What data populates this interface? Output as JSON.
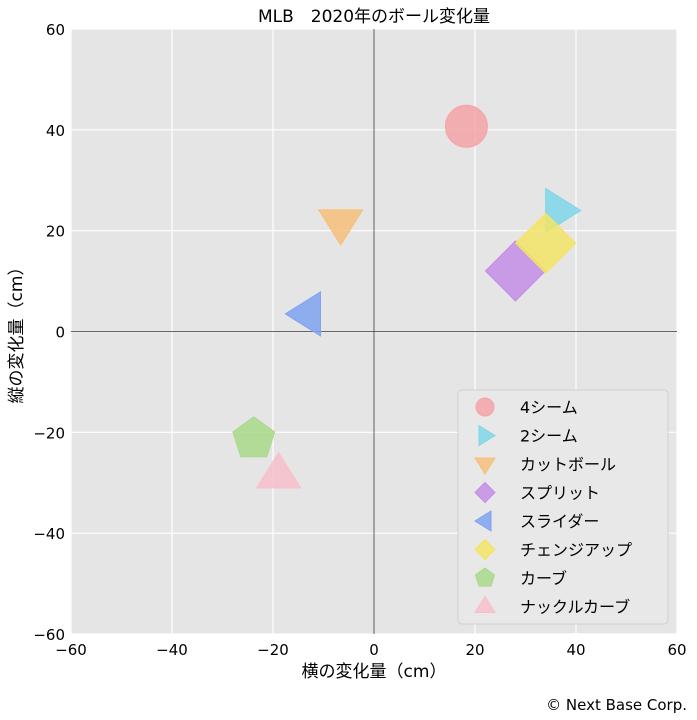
{
  "chart_data": {
    "type": "scatter",
    "title": "MLB　2020年のボール変化量",
    "xlabel": "横の変化量（cm）",
    "ylabel": "縦の変化量（cm）",
    "xlim": [
      -60,
      60
    ],
    "ylim": [
      -60,
      60
    ],
    "xticks": [
      "−60",
      "−40",
      "−20",
      "0",
      "20",
      "40",
      "60"
    ],
    "yticks": [
      "60",
      "40",
      "20",
      "0",
      "−20",
      "−40",
      "−60"
    ],
    "grid": true,
    "legend_position": "bottom-right",
    "series": [
      {
        "name": "4シーム",
        "marker": "circle",
        "color": "#f4a3a8",
        "x": 18.3,
        "y": 40.7
      },
      {
        "name": "2シーム",
        "marker": "triangle-right",
        "color": "#7fd6ea",
        "x": 36.6,
        "y": 24.0
      },
      {
        "name": "カットボール",
        "marker": "triangle-down",
        "color": "#f6c07a",
        "x": -6.6,
        "y": 21.5
      },
      {
        "name": "スプリット",
        "marker": "diamond",
        "color": "#c48ee6",
        "x": 28.0,
        "y": 12.0
      },
      {
        "name": "スライダー",
        "marker": "triangle-left",
        "color": "#7fa3f0",
        "x": -13.2,
        "y": 3.5
      },
      {
        "name": "チェンジアップ",
        "marker": "diamond",
        "color": "#f3e466",
        "x": 34.0,
        "y": 17.5
      },
      {
        "name": "カーブ",
        "marker": "pentagon",
        "color": "#a8d98a",
        "x": -23.8,
        "y": -21.3
      },
      {
        "name": "ナックルカーブ",
        "marker": "triangle-up",
        "color": "#f8bfcb",
        "x": -18.9,
        "y": -28.4
      }
    ]
  },
  "credit": "© Next Base Corp."
}
